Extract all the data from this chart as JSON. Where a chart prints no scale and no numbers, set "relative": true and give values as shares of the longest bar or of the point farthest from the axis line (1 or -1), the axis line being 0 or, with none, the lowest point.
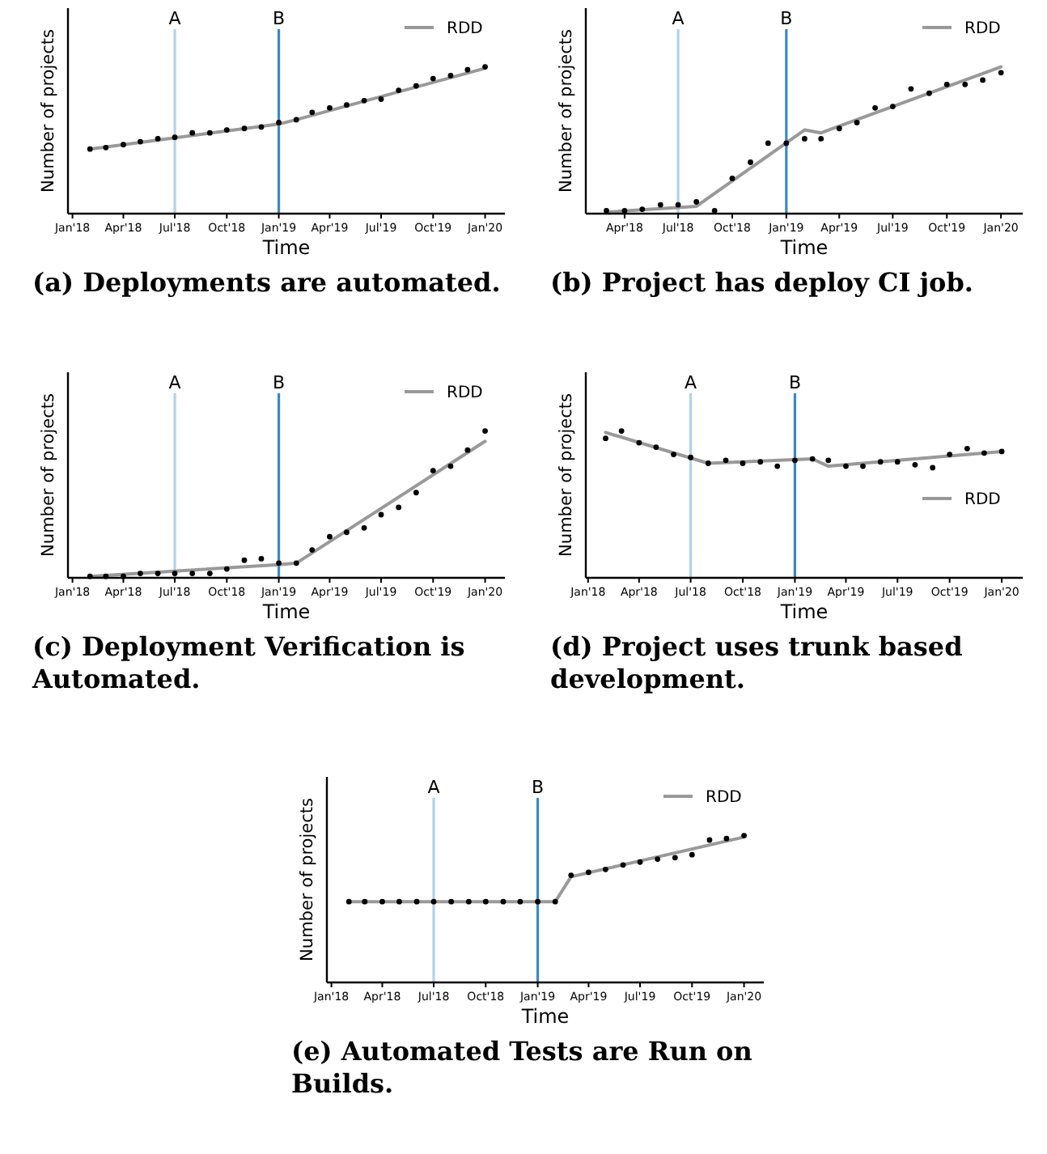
{
  "chart_data": [
    {
      "type": "line",
      "title": "(a) Deployments are automated.",
      "xlabel": "Time",
      "ylabel": "Number of projects",
      "relative": true,
      "legend": "top right",
      "xlim": [
        "2017-12-24",
        "2020-02-05"
      ],
      "xticks": [
        {
          "value": "2018-01",
          "label": "Jan'18"
        },
        {
          "value": "2018-04",
          "label": "Apr'18"
        },
        {
          "value": "2018-07",
          "label": "Jul'18"
        },
        {
          "value": "2018-10",
          "label": "Oct'18"
        },
        {
          "value": "2019-01",
          "label": "Jan'19"
        },
        {
          "value": "2019-04",
          "label": "Apr'19"
        },
        {
          "value": "2019-07",
          "label": "Jul'19"
        },
        {
          "value": "2019-10",
          "label": "Oct'19"
        },
        {
          "value": "2020-01",
          "label": "Jan'20"
        }
      ],
      "ref_lines": [
        {
          "axis": "x",
          "value": "2018-07",
          "label": "A",
          "color": "#b3d1e8"
        },
        {
          "axis": "x",
          "value": "2019-01",
          "label": "B",
          "color": "#3b88c3"
        }
      ],
      "series": [
        {
          "type": "scatter",
          "color": "#000000",
          "marker": "circle",
          "x": [
            "2018-02",
            "2018-03",
            "2018-04",
            "2018-05",
            "2018-06",
            "2018-07",
            "2018-08",
            "2018-09",
            "2018-10",
            "2018-11",
            "2018-12",
            "2019-01",
            "2019-02",
            "2019-03",
            "2019-04",
            "2019-05",
            "2019-06",
            "2019-07",
            "2019-08",
            "2019-09",
            "2019-10",
            "2019-11",
            "2019-12",
            "2020-01"
          ],
          "values": [
            0.44,
            0.45,
            0.47,
            0.49,
            0.51,
            0.52,
            0.55,
            0.55,
            0.57,
            0.58,
            0.59,
            0.62,
            0.64,
            0.69,
            0.72,
            0.74,
            0.77,
            0.78,
            0.84,
            0.87,
            0.92,
            0.94,
            0.98,
            1
          ]
        },
        {
          "type": "line",
          "name": "RDD",
          "color": "#999999",
          "x": [
            "2018-02",
            "2019-01",
            "2019-02",
            "2020-01"
          ],
          "values": [
            0.44,
            0.61,
            0.64,
            0.99
          ]
        }
      ]
    },
    {
      "type": "line",
      "title": "(b) Project has deploy CI job.",
      "xlabel": "Time",
      "ylabel": "Number of projects",
      "relative": true,
      "legend": "top right",
      "xlim": [
        "2018-01-25",
        "2020-02-07"
      ],
      "xticks": [
        {
          "value": "2018-04",
          "label": "Apr'18"
        },
        {
          "value": "2018-07",
          "label": "Jul'18"
        },
        {
          "value": "2018-10",
          "label": "Oct'18"
        },
        {
          "value": "2019-01",
          "label": "Jan'19"
        },
        {
          "value": "2019-04",
          "label": "Apr'19"
        },
        {
          "value": "2019-07",
          "label": "Jul'19"
        },
        {
          "value": "2019-10",
          "label": "Oct'19"
        },
        {
          "value": "2020-01",
          "label": "Jan'20"
        }
      ],
      "ref_lines": [
        {
          "axis": "x",
          "value": "2018-07",
          "label": "A",
          "color": "#b3d1e8"
        },
        {
          "axis": "x",
          "value": "2019-01",
          "label": "B",
          "color": "#3b88c3"
        }
      ],
      "series": [
        {
          "type": "scatter",
          "color": "#000000",
          "marker": "circle",
          "x": [
            "2018-03",
            "2018-04",
            "2018-05",
            "2018-06",
            "2018-07",
            "2018-08",
            "2018-09",
            "2018-10",
            "2018-11",
            "2018-12",
            "2019-01",
            "2019-02",
            "2019-03",
            "2019-04",
            "2019-05",
            "2019-06",
            "2019-07",
            "2019-08",
            "2019-09",
            "2019-10",
            "2019-11",
            "2019-12",
            "2020-01"
          ],
          "values": [
            0.02,
            0.02,
            0.03,
            0.06,
            0.06,
            0.08,
            0.02,
            0.24,
            0.35,
            0.48,
            0.48,
            0.51,
            0.51,
            0.58,
            0.62,
            0.72,
            0.73,
            0.85,
            0.82,
            0.88,
            0.88,
            0.91,
            0.96
          ]
        },
        {
          "type": "line",
          "name": "RDD",
          "color": "#999999",
          "x": [
            "2018-03",
            "2018-08",
            "2019-02",
            "2019-03",
            "2020-01"
          ],
          "values": [
            0.01,
            0.05,
            0.57,
            0.55,
            1
          ]
        }
      ]
    },
    {
      "type": "line",
      "title": "(c) Deployment Verification is Automated.",
      "xlabel": "Time",
      "ylabel": "Number of projects",
      "relative": true,
      "legend": "top right",
      "xlim": [
        "2017-12-24",
        "2020-02-05"
      ],
      "xticks": [
        {
          "value": "2018-01",
          "label": "Jan'18"
        },
        {
          "value": "2018-04",
          "label": "Apr'18"
        },
        {
          "value": "2018-07",
          "label": "Jul'18"
        },
        {
          "value": "2018-10",
          "label": "Oct'18"
        },
        {
          "value": "2019-01",
          "label": "Jan'19"
        },
        {
          "value": "2019-04",
          "label": "Apr'19"
        },
        {
          "value": "2019-07",
          "label": "Jul'19"
        },
        {
          "value": "2019-10",
          "label": "Oct'19"
        },
        {
          "value": "2020-01",
          "label": "Jan'20"
        }
      ],
      "ref_lines": [
        {
          "axis": "x",
          "value": "2018-07",
          "label": "A",
          "color": "#b3d1e8"
        },
        {
          "axis": "x",
          "value": "2019-01",
          "label": "B",
          "color": "#3b88c3"
        }
      ],
      "series": [
        {
          "type": "scatter",
          "color": "#000000",
          "marker": "circle",
          "x": [
            "2018-02",
            "2018-03",
            "2018-04",
            "2018-05",
            "2018-06",
            "2018-07",
            "2018-08",
            "2018-09",
            "2018-10",
            "2018-11",
            "2018-12",
            "2019-01",
            "2019-02",
            "2019-03",
            "2019-04",
            "2019-05",
            "2019-06",
            "2019-07",
            "2019-08",
            "2019-09",
            "2019-10",
            "2019-11",
            "2019-12",
            "2020-01"
          ],
          "values": [
            0.01,
            0.01,
            0.01,
            0.03,
            0.03,
            0.03,
            0.03,
            0.03,
            0.06,
            0.12,
            0.13,
            0.1,
            0.1,
            0.19,
            0.28,
            0.31,
            0.34,
            0.43,
            0.48,
            0.58,
            0.73,
            0.76,
            0.87,
            1
          ]
        },
        {
          "type": "line",
          "name": "RDD",
          "color": "#999999",
          "x": [
            "2018-02",
            "2019-01",
            "2019-02",
            "2020-01"
          ],
          "values": [
            0.01,
            0.09,
            0.1,
            0.93
          ]
        }
      ]
    },
    {
      "type": "line",
      "title": "(d) Project uses trunk based development.",
      "xlabel": "Time",
      "ylabel": "Number of projects",
      "relative": true,
      "legend": "right",
      "xlim": [
        "2017-12-28",
        "2020-02-07"
      ],
      "xticks": [
        {
          "value": "2018-01",
          "label": "Jan'18"
        },
        {
          "value": "2018-04",
          "label": "Apr'18"
        },
        {
          "value": "2018-07",
          "label": "Jul'18"
        },
        {
          "value": "2018-10",
          "label": "Oct'18"
        },
        {
          "value": "2019-01",
          "label": "Jan'19"
        },
        {
          "value": "2019-04",
          "label": "Apr'19"
        },
        {
          "value": "2019-07",
          "label": "Jul'19"
        },
        {
          "value": "2019-10",
          "label": "Oct'19"
        },
        {
          "value": "2020-01",
          "label": "Jan'20"
        }
      ],
      "ref_lines": [
        {
          "axis": "x",
          "value": "2018-07",
          "label": "A",
          "color": "#b3d1e8"
        },
        {
          "axis": "x",
          "value": "2019-01",
          "label": "B",
          "color": "#3b88c3"
        }
      ],
      "series": [
        {
          "type": "scatter",
          "color": "#000000",
          "marker": "circle",
          "x": [
            "2018-02",
            "2018-03",
            "2018-04",
            "2018-05",
            "2018-06",
            "2018-07",
            "2018-08",
            "2018-09",
            "2018-10",
            "2018-11",
            "2018-12",
            "2019-01",
            "2019-02",
            "2019-03",
            "2019-04",
            "2019-05",
            "2019-06",
            "2019-07",
            "2019-08",
            "2019-09",
            "2019-10",
            "2019-11",
            "2019-12",
            "2020-01"
          ],
          "values": [
            0.95,
            1,
            0.92,
            0.89,
            0.84,
            0.82,
            0.78,
            0.8,
            0.78,
            0.79,
            0.76,
            0.8,
            0.81,
            0.8,
            0.76,
            0.76,
            0.79,
            0.79,
            0.77,
            0.75,
            0.84,
            0.88,
            0.85,
            0.86
          ]
        },
        {
          "type": "line",
          "name": "RDD",
          "color": "#999999",
          "x": [
            "2018-02",
            "2018-08",
            "2019-02",
            "2019-03",
            "2020-01"
          ],
          "values": [
            0.99,
            0.78,
            0.81,
            0.76,
            0.86
          ]
        }
      ]
    },
    {
      "type": "line",
      "title": "(e) Automated Tests are Run on Builds.",
      "xlabel": "Time",
      "ylabel": "Number of projects",
      "relative": true,
      "legend": "top right",
      "xlim": [
        "2017-12-24",
        "2020-02-05"
      ],
      "xticks": [
        {
          "value": "2018-01",
          "label": "Jan'18"
        },
        {
          "value": "2018-04",
          "label": "Apr'18"
        },
        {
          "value": "2018-07",
          "label": "Jul'18"
        },
        {
          "value": "2018-10",
          "label": "Oct'18"
        },
        {
          "value": "2019-01",
          "label": "Jan'19"
        },
        {
          "value": "2019-04",
          "label": "Apr'19"
        },
        {
          "value": "2019-07",
          "label": "Jul'19"
        },
        {
          "value": "2019-10",
          "label": "Oct'19"
        },
        {
          "value": "2020-01",
          "label": "Jan'20"
        }
      ],
      "ref_lines": [
        {
          "axis": "x",
          "value": "2018-07",
          "label": "A",
          "color": "#b3d1e8"
        },
        {
          "axis": "x",
          "value": "2019-01",
          "label": "B",
          "color": "#3b88c3"
        }
      ],
      "series": [
        {
          "type": "scatter",
          "color": "#000000",
          "marker": "circle",
          "x": [
            "2018-02",
            "2018-03",
            "2018-04",
            "2018-05",
            "2018-06",
            "2018-07",
            "2018-08",
            "2018-09",
            "2018-10",
            "2018-11",
            "2018-12",
            "2019-01",
            "2019-02",
            "2019-03",
            "2019-04",
            "2019-05",
            "2019-06",
            "2019-07",
            "2019-08",
            "2019-09",
            "2019-10",
            "2019-11",
            "2019-12",
            "2020-01"
          ],
          "values": [
            0.55,
            0.55,
            0.55,
            0.55,
            0.55,
            0.55,
            0.55,
            0.55,
            0.55,
            0.55,
            0.55,
            0.55,
            0.55,
            0.73,
            0.75,
            0.77,
            0.8,
            0.82,
            0.84,
            0.85,
            0.87,
            0.97,
            0.98,
            1
          ]
        },
        {
          "type": "line",
          "name": "RDD",
          "color": "#999999",
          "x": [
            "2018-02",
            "2019-02",
            "2019-03",
            "2020-01"
          ],
          "values": [
            0.55,
            0.55,
            0.72,
            0.99
          ]
        }
      ]
    }
  ]
}
